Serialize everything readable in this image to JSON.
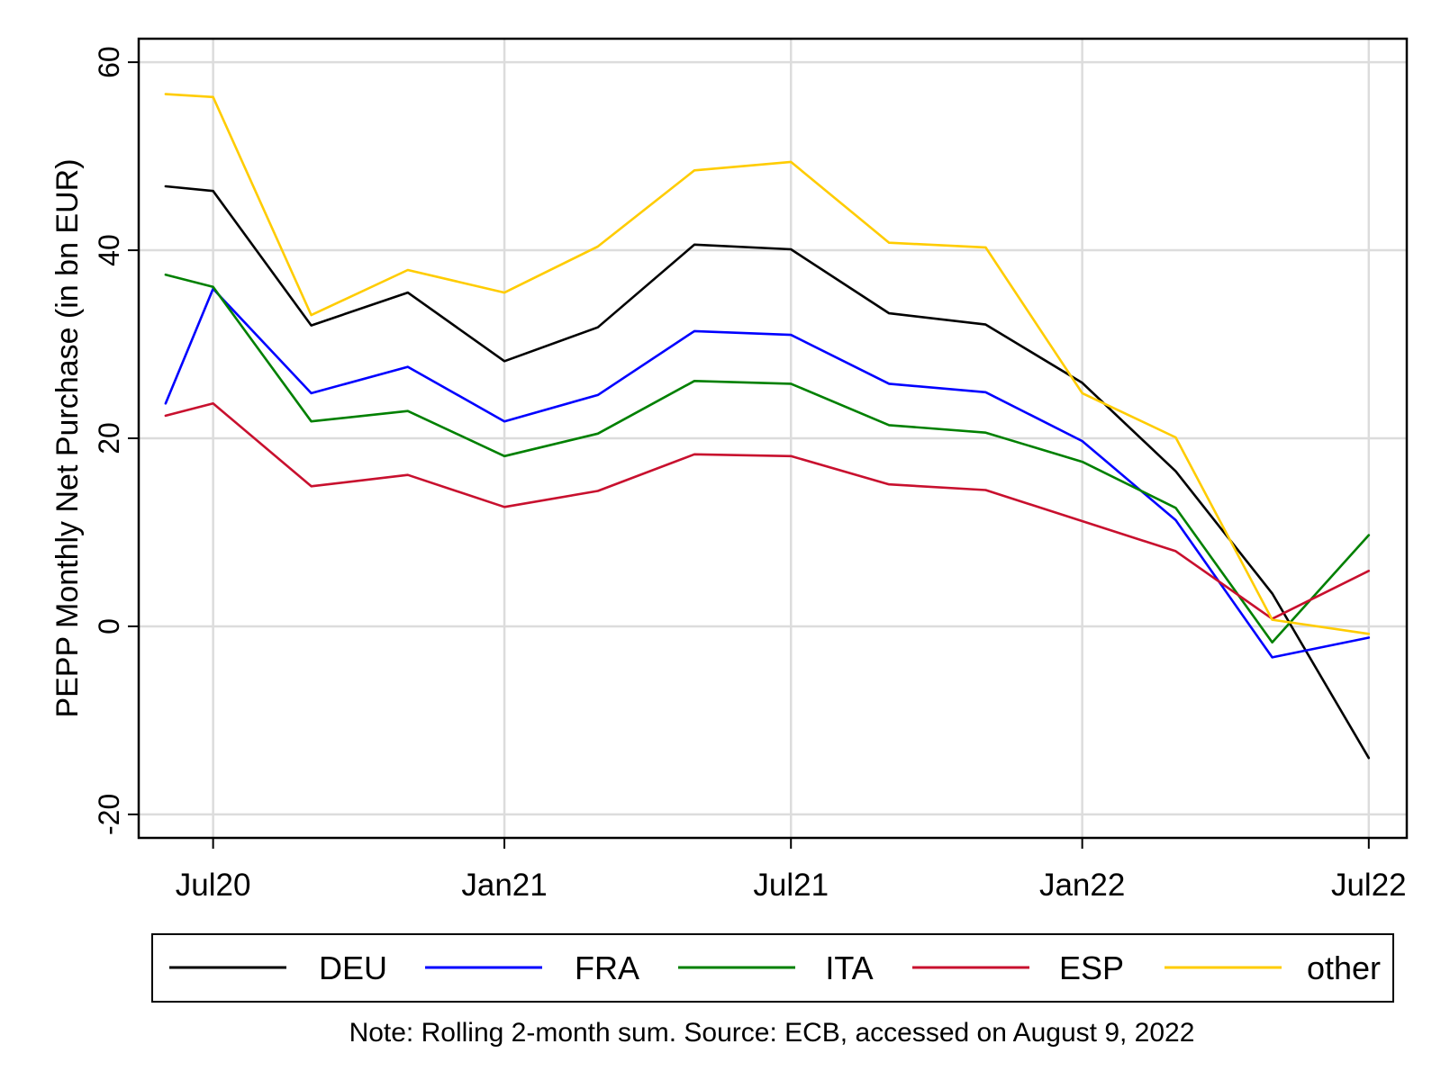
{
  "chart_data": {
    "type": "line",
    "title": "",
    "xlabel": "",
    "ylabel": "PEPP Monthly Net Purchase (in bn EUR)",
    "note": "Note: Rolling 2-month sum. Source: ECB, accessed on August 9, 2022",
    "x": [
      "2020-06",
      "2020-07",
      "2020-08",
      "2020-09",
      "2020-10",
      "2020-11",
      "2020-12",
      "2021-01",
      "2021-02",
      "2021-03",
      "2021-04",
      "2021-05",
      "2021-06",
      "2021-07",
      "2021-08",
      "2021-09",
      "2021-10",
      "2021-11",
      "2021-12",
      "2022-01",
      "2022-02",
      "2022-03",
      "2022-04",
      "2022-05",
      "2022-06",
      "2022-07"
    ],
    "xlim": [
      "2020-05-15",
      "2022-07-25"
    ],
    "xticks": [
      {
        "date": "2020-07",
        "label": "Jul20"
      },
      {
        "date": "2021-01",
        "label": "Jan21"
      },
      {
        "date": "2021-07",
        "label": "Jul21"
      },
      {
        "date": "2022-01",
        "label": "Jan22"
      },
      {
        "date": "2022-07",
        "label": "Jul22"
      }
    ],
    "ylim": [
      -22.5,
      62.5
    ],
    "yticks": [
      -20,
      0,
      20,
      40,
      60
    ],
    "grid": true,
    "legend_position": "bottom",
    "series": [
      {
        "name": "DEU",
        "color": "#000000",
        "x": [
          "2020-06",
          "2020-07",
          "2020-09",
          "2020-11",
          "2021-01",
          "2021-03",
          "2021-05",
          "2021-07",
          "2021-09",
          "2021-11",
          "2022-01",
          "2022-03",
          "2022-05",
          "2022-07"
        ],
        "values": [
          46.8,
          46.3,
          32.0,
          35.5,
          28.2,
          31.8,
          40.6,
          40.1,
          33.3,
          32.1,
          25.9,
          16.5,
          3.5,
          -14.0
        ]
      },
      {
        "name": "FRA",
        "color": "#0000ff",
        "x": [
          "2020-06",
          "2020-07",
          "2020-09",
          "2020-11",
          "2021-01",
          "2021-03",
          "2021-05",
          "2021-07",
          "2021-09",
          "2021-11",
          "2022-01",
          "2022-03",
          "2022-05",
          "2022-07"
        ],
        "values": [
          23.7,
          35.9,
          24.8,
          27.6,
          21.8,
          24.6,
          31.4,
          31.0,
          25.8,
          24.9,
          19.7,
          11.3,
          -3.3,
          -1.2
        ]
      },
      {
        "name": "ITA",
        "color": "#008000",
        "x": [
          "2020-06",
          "2020-07",
          "2020-09",
          "2020-11",
          "2021-01",
          "2021-03",
          "2021-05",
          "2021-07",
          "2021-09",
          "2021-11",
          "2022-01",
          "2022-03",
          "2022-05",
          "2022-07"
        ],
        "values": [
          37.4,
          36.1,
          21.8,
          22.9,
          18.1,
          20.5,
          26.1,
          25.8,
          21.4,
          20.6,
          17.5,
          12.6,
          -1.7,
          9.7
        ]
      },
      {
        "name": "ESP",
        "color": "#c8102e",
        "x": [
          "2020-06",
          "2020-07",
          "2020-09",
          "2020-11",
          "2021-01",
          "2021-03",
          "2021-05",
          "2021-07",
          "2021-09",
          "2021-11",
          "2022-03",
          "2022-05",
          "2022-07"
        ],
        "values": [
          22.4,
          23.7,
          14.9,
          16.1,
          12.7,
          14.4,
          18.3,
          18.1,
          15.1,
          14.5,
          8.0,
          0.8,
          5.9
        ]
      },
      {
        "name": "other",
        "color": "#ffcc00",
        "x": [
          "2020-06",
          "2020-07",
          "2020-09",
          "2020-11",
          "2021-01",
          "2021-03",
          "2021-05",
          "2021-07",
          "2021-09",
          "2021-11",
          "2022-01",
          "2022-03",
          "2022-05",
          "2022-07"
        ],
        "values": [
          56.6,
          56.3,
          33.1,
          37.9,
          35.5,
          40.4,
          48.5,
          49.4,
          40.8,
          40.3,
          24.8,
          20.1,
          0.7,
          -0.8
        ]
      }
    ]
  }
}
